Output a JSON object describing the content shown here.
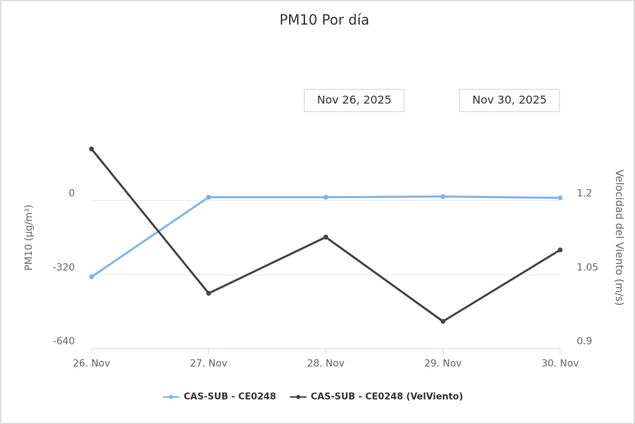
{
  "chart_data": {
    "type": "line",
    "title": "PM10 Por día",
    "range_from": "Nov 26, 2025",
    "range_to": "Nov 30, 2025",
    "categories": [
      "26. Nov",
      "27. Nov",
      "28. Nov",
      "29. Nov",
      "30. Nov"
    ],
    "ylabel": "PM10 (µg/m³)",
    "y2label": "Velocidad del Viento (m/s)",
    "ylim": [
      -640,
      320
    ],
    "yticks": [
      -640,
      -320,
      0
    ],
    "y2lim": [
      0.9,
      1.35
    ],
    "y2ticks": [
      0.9,
      1.05,
      1.2
    ],
    "grid": true,
    "series": [
      {
        "name": "CAS-SUB - CE0248",
        "color": "#7cb5ec",
        "values": [
          -330,
          15,
          15,
          18,
          12
        ]
      },
      {
        "name": "CAS-SUB - CE0248 (VelViento)",
        "color": "#434348",
        "axis": "y2",
        "values": [
          1.305,
          1.012,
          1.126,
          0.955,
          1.1
        ]
      }
    ]
  }
}
